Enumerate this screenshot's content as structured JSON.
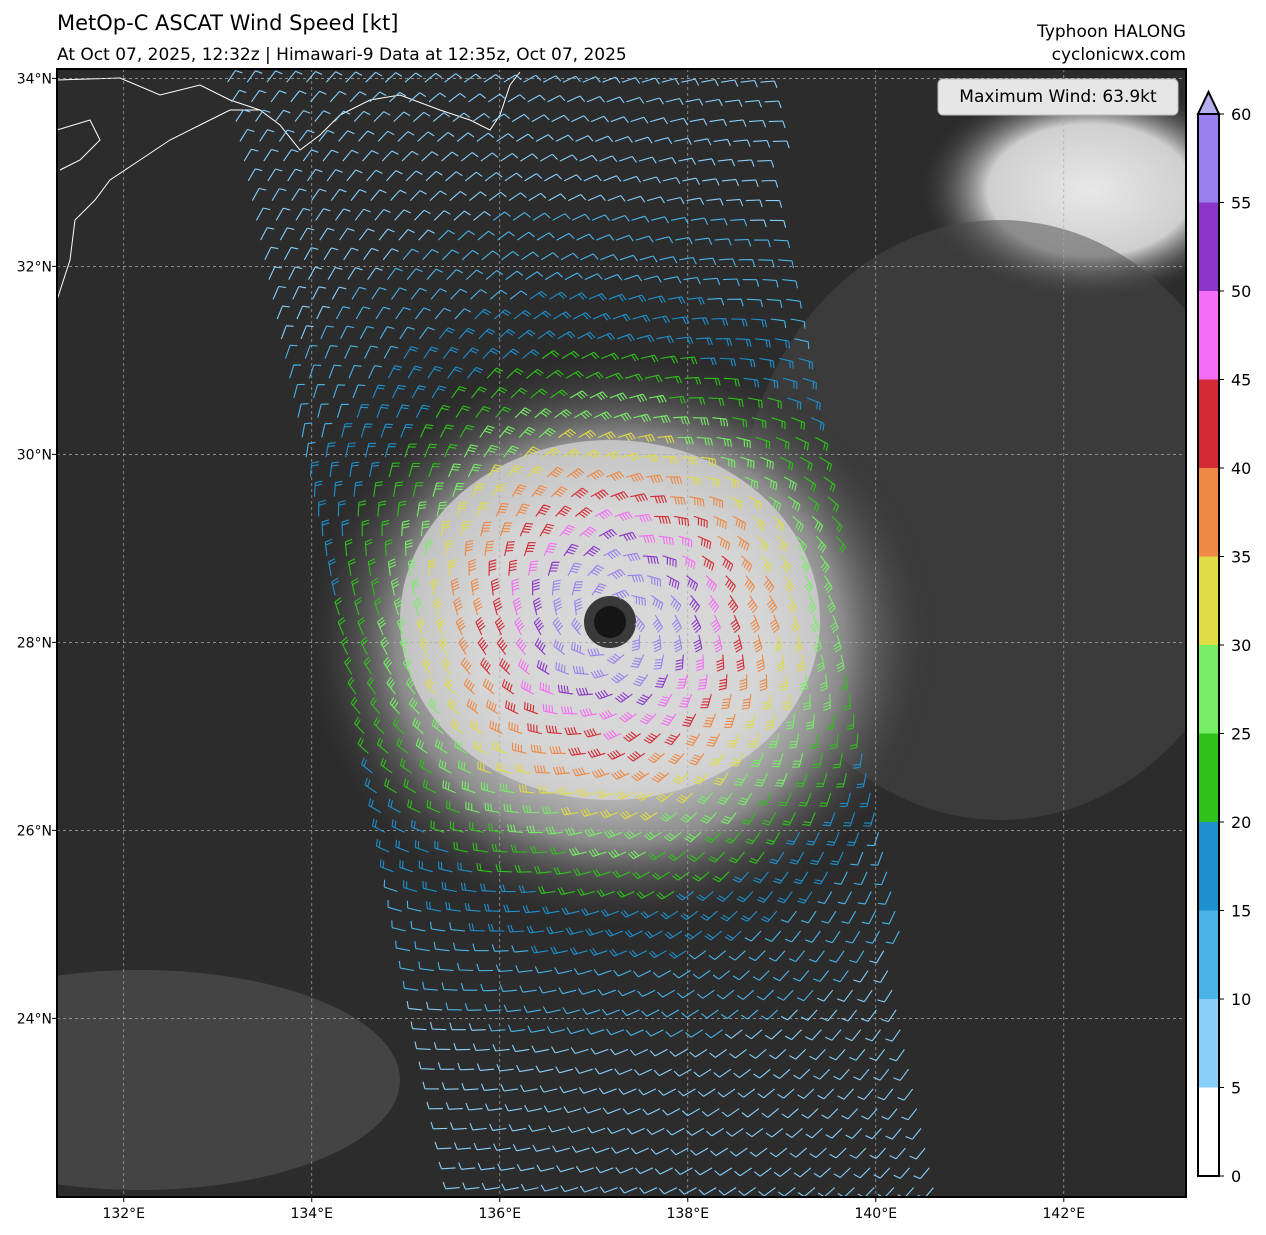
{
  "map": {
    "title": "MetOp-C ASCAT Wind Speed [kt]",
    "subtitle": "At Oct 07, 2025, 12:32z | Himawari-9 Data at 12:35z, Oct 07, 2025",
    "storm": "Typhoon HALONG",
    "site": "cyclonicwx.com",
    "max_wind": "Maximum Wind: 63.9kt",
    "lonlim": [
      131.29,
      143.3
    ],
    "latlim": [
      22.1,
      34.1
    ],
    "lonticks": [
      {
        "value": 132,
        "label": "132°E"
      },
      {
        "value": 134,
        "label": "134°E"
      },
      {
        "value": 136,
        "label": "136°E"
      },
      {
        "value": 138,
        "label": "138°E"
      },
      {
        "value": 140,
        "label": "140°E"
      },
      {
        "value": 142,
        "label": "142°E"
      }
    ],
    "latticks": [
      {
        "value": 24,
        "label": "24°N"
      },
      {
        "value": 26,
        "label": "26°N"
      },
      {
        "value": 28,
        "label": "28°N"
      },
      {
        "value": 30,
        "label": "30°N"
      },
      {
        "value": 32,
        "label": "32°N"
      },
      {
        "value": 34,
        "label": "34°N"
      }
    ],
    "grid": true,
    "colorbar": {
      "ticks": [
        0,
        5,
        10,
        15,
        20,
        25,
        30,
        35,
        40,
        45,
        50,
        55,
        60
      ],
      "colors": [
        "#ffffff",
        "#87cefa",
        "#4ab4e8",
        "#1e90cc",
        "#2fc21a",
        "#77ee66",
        "#dfdc45",
        "#ee8844",
        "#d42a35",
        "#f46df4",
        "#8a35c8",
        "#9a80ee"
      ],
      "extend_color": "#b6b0f0"
    }
  }
}
